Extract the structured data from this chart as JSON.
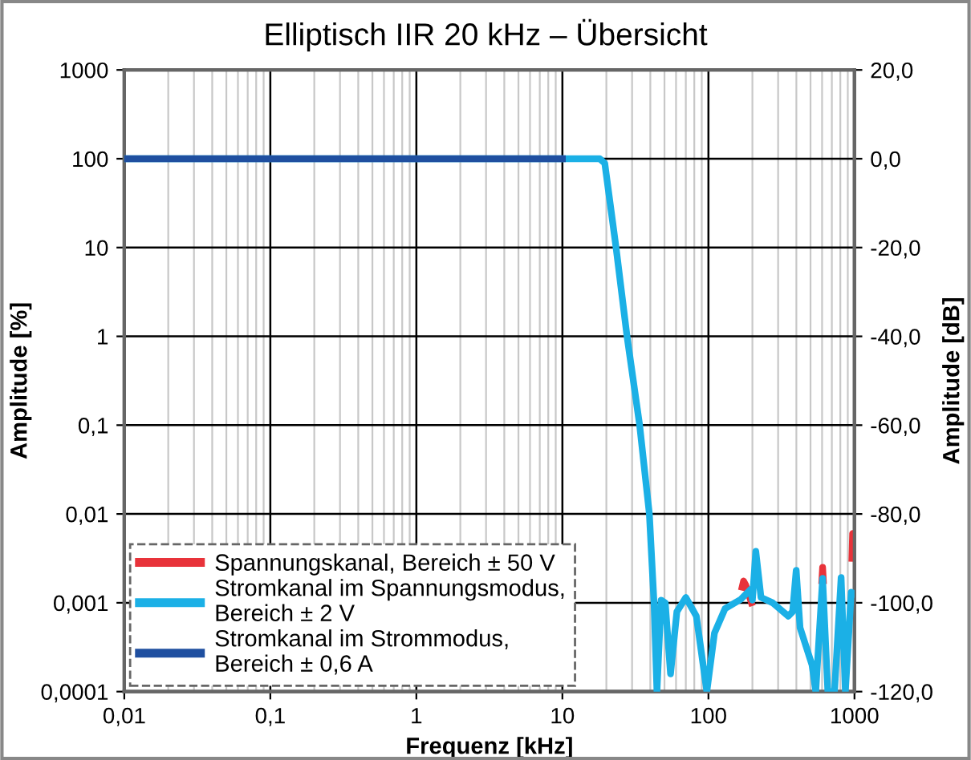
{
  "chart_data": {
    "type": "line",
    "title": "Elliptisch IIR 20 kHz – Übersicht",
    "xlabel": "Frequenz [kHz]",
    "ylabel": "Amplitude [%]",
    "y2label": "Amplitude [dB]",
    "log": "xy",
    "grid": true,
    "legend": "bottom left",
    "line_style": "solid",
    "marker": "none",
    "xlim": [
      0.01,
      1000
    ],
    "xticks": [
      {
        "value": 0.01,
        "label": "0,01"
      },
      {
        "value": 0.1,
        "label": "0,1"
      },
      1,
      10,
      100,
      1000
    ],
    "ylim": [
      0.0001,
      1000
    ],
    "yticks": [
      {
        "value": 0.0001,
        "label": "0,0001"
      },
      {
        "value": 0.001,
        "label": "0,001"
      },
      {
        "value": 0.01,
        "label": "0,01"
      },
      {
        "value": 0.1,
        "label": "0,1"
      },
      1,
      10,
      100,
      1000
    ],
    "y2lim": [
      -120,
      20
    ],
    "y2ticks": [
      {
        "value": -120,
        "label": "-120,0"
      },
      {
        "value": -100,
        "label": "-100,0"
      },
      {
        "value": -80,
        "label": "-80,0"
      },
      {
        "value": -60,
        "label": "-60,0"
      },
      {
        "value": -40,
        "label": "-40,0"
      },
      {
        "value": -20,
        "label": "-20,0"
      },
      {
        "value": 0,
        "label": "0,0"
      },
      {
        "value": 20,
        "label": "20,0"
      }
    ],
    "series": [
      {
        "name": "Spannungskanal, Bereich ± 50 V",
        "color": "#e8333a",
        "axis": "y2",
        "x": [
          170,
          174,
          180,
          197,
          400,
          598,
          605,
          612,
          900,
          960,
          971,
          1000
        ],
        "values": [
          -96.5,
          -95.1,
          -96,
          -100,
          null,
          -95,
          -92,
          -95,
          null,
          -90,
          -84.4,
          -84.7
        ]
      },
      {
        "name": "Stromkanal im Spannungsmodus,\nBereich ± 2 V",
        "color": "#1bb0e6",
        "axis": "y2",
        "x": [
          0.01,
          18,
          19.5,
          23.3,
          27.7,
          33.8,
          39.4,
          42.4,
          44.4,
          47.4,
          50.6,
          55,
          60.8,
          70,
          82.6,
          97.5,
          110,
          130,
          167,
          194,
          200,
          211,
          229,
          275,
          352,
          377,
          399,
          424,
          512,
          543,
          605,
          657,
          730,
          810,
          866,
          950,
          1000
        ],
        "values": [
          0,
          0,
          -1,
          -20,
          -40,
          -60,
          -80,
          -100,
          -120,
          -99.4,
          -100,
          -116,
          -102,
          -98.8,
          -103,
          -120,
          -106.8,
          -101.3,
          -99.2,
          -97,
          -99.4,
          -88.4,
          -98.8,
          -100,
          -103,
          -102,
          -92.7,
          -105.6,
          -114,
          -120,
          -94.5,
          -120,
          -120,
          -94.3,
          -120,
          -97.6,
          -98
        ]
      },
      {
        "name": "Stromkanal im Strommodus,\nBereich ± 0,6 A",
        "color": "#1f4fa0",
        "axis": "y2",
        "x": [
          0.01,
          10
        ],
        "values": [
          0,
          0
        ]
      }
    ]
  }
}
